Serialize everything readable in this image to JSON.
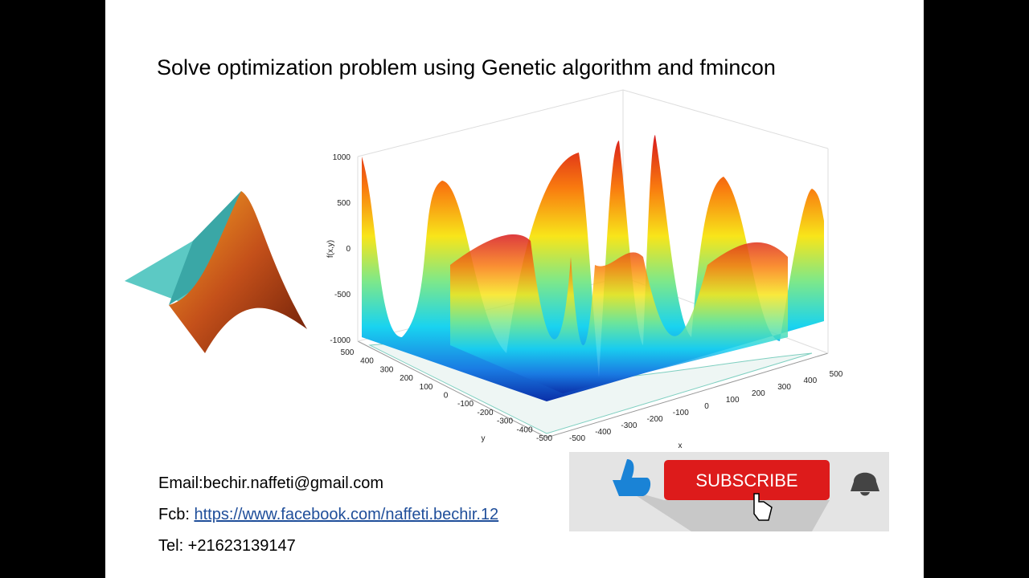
{
  "slide": {
    "title": "Solve optimization problem using Genetic algorithm and fmincon",
    "figure": {
      "z_label": "f(x,y)",
      "x_label": "x",
      "y_label": "y",
      "z_ticks": [
        "1000",
        "500",
        "0",
        "-500",
        "-1000"
      ],
      "y_ticks": [
        "500",
        "400",
        "300",
        "200",
        "100",
        "0",
        "-100",
        "-200",
        "-300",
        "-400",
        "-500"
      ],
      "x_ticks": [
        "-500",
        "-400",
        "-300",
        "-200",
        "-100",
        "0",
        "100",
        "200",
        "300",
        "400",
        "500"
      ]
    },
    "contact": {
      "email": "Email:bechir.naffeti@gmail.com",
      "facebook_label": "Fcb: ",
      "facebook_url": "https://www.facebook.com/naffeti.bechir.12",
      "tel": "Tel: +21623139147"
    },
    "subscribe": "SUBSCRIBE"
  }
}
